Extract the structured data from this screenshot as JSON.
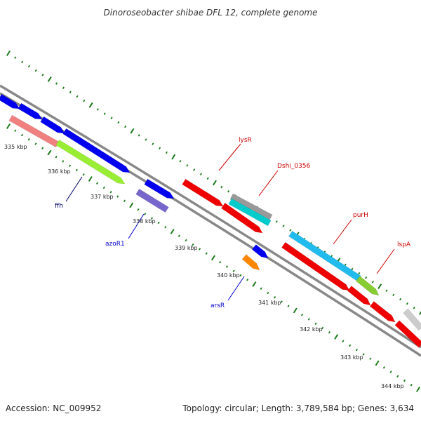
{
  "title": "Dinoroseobacter shibae DFL 12, complete genome",
  "footer": {
    "accession": "Accession: NC_009952",
    "stats": "Topology: circular; Length: 3,789,584 bp; Genes: 3,634"
  },
  "colors": {
    "backbone": "#888888",
    "tick": "#1a7a1a",
    "gene_label_red": "#cc0000",
    "gene_label_blue": "#0000cc",
    "gene_label_dark": "#000066"
  },
  "kbp_labels": [
    "335 kbp",
    "336 kbp",
    "337 kbp",
    "338 kbp",
    "339 kbp",
    "340 kbp",
    "341 kbp",
    "342 kbp",
    "343 kbp",
    "344 kbp"
  ],
  "gene_labels": [
    {
      "text": "lysR",
      "color": "#cc0000"
    },
    {
      "text": "Dshi_0356",
      "color": "#cc0000"
    },
    {
      "text": "purH",
      "color": "#cc0000"
    },
    {
      "text": "lspA",
      "color": "#cc0000"
    },
    {
      "text": "ffh",
      "color": "#000066"
    },
    {
      "text": "azoR1",
      "color": "#0000cc"
    },
    {
      "text": "arsR",
      "color": "#0000cc"
    }
  ],
  "genes": [
    {
      "color": "#0000ee"
    },
    {
      "color": "#0000ee"
    },
    {
      "color": "#0000ee"
    },
    {
      "color": "#0000ee"
    },
    {
      "color": "#f08080"
    },
    {
      "color": "#99ee33"
    },
    {
      "color": "#0000ee"
    },
    {
      "color": "#7766cc"
    },
    {
      "color": "#ee0000"
    },
    {
      "color": "#999999"
    },
    {
      "color": "#00cccc"
    },
    {
      "color": "#ee0000"
    },
    {
      "color": "#0000ee"
    },
    {
      "color": "#ff8800"
    },
    {
      "color": "#22bbee"
    },
    {
      "color": "#ee0000"
    },
    {
      "color": "#88cc33"
    },
    {
      "color": "#ee0000"
    },
    {
      "color": "#ee0000"
    },
    {
      "color": "#cccccc"
    },
    {
      "color": "#ee0000"
    }
  ]
}
